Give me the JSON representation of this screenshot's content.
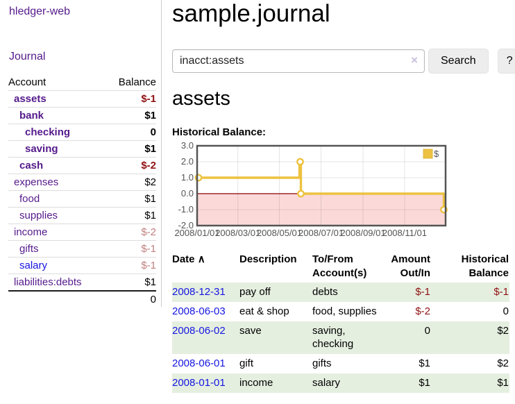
{
  "brand": "hledger-web",
  "sidebar": {
    "journal_link": "Journal",
    "accounts_table": {
      "headers": {
        "account": "Account",
        "balance": "Balance"
      },
      "rows": [
        {
          "name": "assets",
          "balance": "$-1",
          "indent": 0,
          "bold": true,
          "link_color": "purple",
          "balance_style": "neg-strong"
        },
        {
          "name": "bank",
          "balance": "$1",
          "indent": 1,
          "bold": true,
          "link_color": "purple",
          "balance_style": "black"
        },
        {
          "name": "checking",
          "balance": "0",
          "indent": 2,
          "bold": true,
          "link_color": "purple",
          "balance_style": "black"
        },
        {
          "name": "saving",
          "balance": "$1",
          "indent": 2,
          "bold": true,
          "link_color": "purple",
          "balance_style": "black"
        },
        {
          "name": "cash",
          "balance": "$-2",
          "indent": 1,
          "bold": true,
          "link_color": "purple",
          "balance_style": "neg-strong"
        },
        {
          "name": "expenses",
          "balance": "$2",
          "indent": 0,
          "bold": false,
          "link_color": "purple",
          "balance_style": "black"
        },
        {
          "name": "food",
          "balance": "$1",
          "indent": 1,
          "bold": false,
          "link_color": "purple",
          "balance_style": "black"
        },
        {
          "name": "supplies",
          "balance": "$1",
          "indent": 1,
          "bold": false,
          "link_color": "purple",
          "balance_style": "black"
        },
        {
          "name": "income",
          "balance": "$-2",
          "indent": 0,
          "bold": false,
          "link_color": "purple",
          "balance_style": "neg-faint"
        },
        {
          "name": "gifts",
          "balance": "$-1",
          "indent": 1,
          "bold": false,
          "link_color": "purple",
          "balance_style": "neg-faint"
        },
        {
          "name": "salary",
          "balance": "$-1",
          "indent": 1,
          "bold": false,
          "link_color": "blue",
          "balance_style": "neg-faint"
        },
        {
          "name": "liabilities:debts",
          "balance": "$1",
          "indent": 0,
          "bold": false,
          "link_color": "purple",
          "balance_style": "black"
        }
      ],
      "total": "0"
    }
  },
  "header": {
    "title": "sample.journal"
  },
  "search": {
    "query": "inacct:assets",
    "clear_icon": "×",
    "search_label": "Search",
    "help_label": "?"
  },
  "account_page": {
    "title": "assets",
    "chart_label": "Historical Balance:"
  },
  "chart_data": {
    "type": "line",
    "title": "Historical Balance:",
    "legend": "$",
    "legend_position": "top-right",
    "series": [
      {
        "name": "$",
        "points": [
          [
            "2008-01-01",
            1
          ],
          [
            "2008-06-01",
            2
          ],
          [
            "2008-06-02",
            2
          ],
          [
            "2008-06-03",
            0
          ],
          [
            "2008-12-31",
            -1
          ]
        ]
      }
    ],
    "x_range": [
      "2008-01-01",
      "2008-12-31"
    ],
    "ylim": [
      -2,
      3
    ],
    "yticks": [
      "3.0",
      "2.0",
      "1.0",
      "0.0",
      "-1.0",
      "-2.0"
    ],
    "xticks": [
      "2008/01/01",
      "2008/03/01",
      "2008/05/01",
      "2008/07/01",
      "2008/09/01",
      "2008/11/01"
    ],
    "grid": true,
    "line_color": "#edc240",
    "negative_region_color": "#fbd9d9",
    "zero_line_color": "#8b0000",
    "border_color": "#545454"
  },
  "register_table": {
    "headers": {
      "date": "Date",
      "sort_icon": "∧",
      "description": "Description",
      "accounts": "To/From Account(s)",
      "amount": "Amount Out/In",
      "balance": "Historical Balance"
    },
    "rows": [
      {
        "date": "2008-12-31",
        "description": "pay off",
        "accounts": "debts",
        "amount": "$-1",
        "balance": "$-1",
        "amount_neg": true,
        "balance_neg": true,
        "striped": true
      },
      {
        "date": "2008-06-03",
        "description": "eat & shop",
        "accounts": "food, supplies",
        "amount": "$-2",
        "balance": "0",
        "amount_neg": true,
        "balance_neg": false,
        "striped": false
      },
      {
        "date": "2008-06-02",
        "description": "save",
        "accounts": "saving, checking",
        "amount": "0",
        "balance": "$2",
        "amount_neg": false,
        "balance_neg": false,
        "striped": true
      },
      {
        "date": "2008-06-01",
        "description": "gift",
        "accounts": "gifts",
        "amount": "$1",
        "balance": "$2",
        "amount_neg": false,
        "balance_neg": false,
        "striped": false
      },
      {
        "date": "2008-01-01",
        "description": "income",
        "accounts": "salary",
        "amount": "$1",
        "balance": "$1",
        "amount_neg": false,
        "balance_neg": false,
        "striped": true
      }
    ]
  },
  "colors": {
    "link_purple": "#551a8b",
    "link_blue": "#1515e0",
    "negative_strong": "#8f1212",
    "negative_faint": "#c17f7f",
    "row_stripe_green": "#e5efe0",
    "chart_line_yellow": "#edc240",
    "chart_negative_region": "#fbd9d9",
    "chart_zero_line": "#8b0000",
    "chart_border": "#545454"
  }
}
